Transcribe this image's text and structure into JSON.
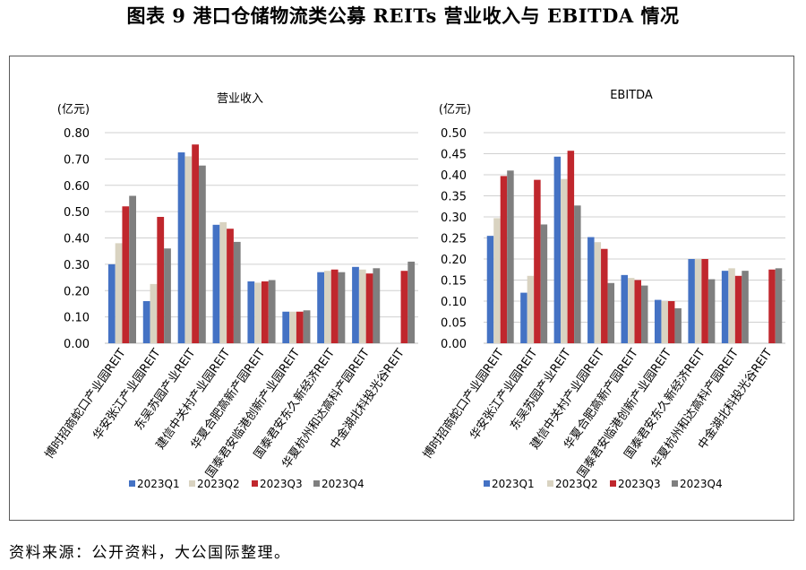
{
  "title": "图表 9  港口仓储物流类公募 REITs 营业收入与 EBITDA 情况",
  "source": "资料来源：公开资料，大公国际整理。",
  "colors": {
    "2023Q1": "#4472c4",
    "2023Q2": "#d9d3c1",
    "2023Q3": "#c0272d",
    "2023Q4": "#7f7f7f",
    "grid": "#d0d0d0"
  },
  "chart_data": [
    {
      "type": "bar",
      "title": "营业收入",
      "ylabel": "(亿元)",
      "ylim": [
        0,
        0.8
      ],
      "yticks": [
        "0.00",
        "0.10",
        "0.20",
        "0.30",
        "0.40",
        "0.50",
        "0.60",
        "0.70",
        "0.80"
      ],
      "grid": true,
      "legend_position": "bottom",
      "categories": [
        "博时招商蛇口产业园REIT",
        "华安张江产业园REIT",
        "东吴苏园产业REIT",
        "建信中关村产业园REIT",
        "华夏合肥高新产园REIT",
        "国泰君安临港创新产业园REIT",
        "国泰君安东久新经济REIT",
        "华夏杭州和达高科产园REIT",
        "中金湖北科投光谷REIT"
      ],
      "series": [
        {
          "name": "2023Q1",
          "values": [
            0.3,
            0.16,
            0.725,
            0.45,
            0.235,
            0.12,
            0.27,
            0.29,
            null
          ]
        },
        {
          "name": "2023Q2",
          "values": [
            0.38,
            0.225,
            0.71,
            0.46,
            0.23,
            0.12,
            0.275,
            0.28,
            null
          ]
        },
        {
          "name": "2023Q3",
          "values": [
            0.52,
            0.48,
            0.755,
            0.435,
            0.235,
            0.12,
            0.28,
            0.265,
            0.275
          ]
        },
        {
          "name": "2023Q4",
          "values": [
            0.56,
            0.36,
            0.675,
            0.385,
            0.24,
            0.125,
            0.27,
            0.285,
            0.31
          ]
        }
      ]
    },
    {
      "type": "bar",
      "title": "EBITDA",
      "ylabel": "(亿元)",
      "ylim": [
        0,
        0.5
      ],
      "yticks": [
        "0.00",
        "0.05",
        "0.10",
        "0.15",
        "0.20",
        "0.25",
        "0.30",
        "0.35",
        "0.40",
        "0.45",
        "0.50"
      ],
      "grid": true,
      "legend_position": "bottom",
      "categories": [
        "博时招商蛇口产业园REIT",
        "华安张江产业园REIT",
        "东吴苏园产业REIT",
        "建信中关村产业园REIT",
        "华夏合肥高新产园REIT",
        "国泰君安临港创新产业园REIT",
        "国泰君安东久新经济REIT",
        "华夏杭州和达高科产园REIT",
        "中金湖北科投光谷REIT"
      ],
      "series": [
        {
          "name": "2023Q1",
          "values": [
            0.255,
            0.12,
            0.443,
            0.252,
            0.162,
            0.103,
            0.2,
            0.172,
            null
          ]
        },
        {
          "name": "2023Q2",
          "values": [
            0.297,
            0.16,
            0.39,
            0.24,
            0.155,
            0.1,
            0.2,
            0.178,
            null
          ]
        },
        {
          "name": "2023Q3",
          "values": [
            0.397,
            0.388,
            0.457,
            0.224,
            0.15,
            0.1,
            0.2,
            0.16,
            0.175
          ]
        },
        {
          "name": "2023Q4",
          "values": [
            0.41,
            0.282,
            0.327,
            0.143,
            0.137,
            0.083,
            0.152,
            0.172,
            0.178
          ]
        }
      ]
    }
  ]
}
